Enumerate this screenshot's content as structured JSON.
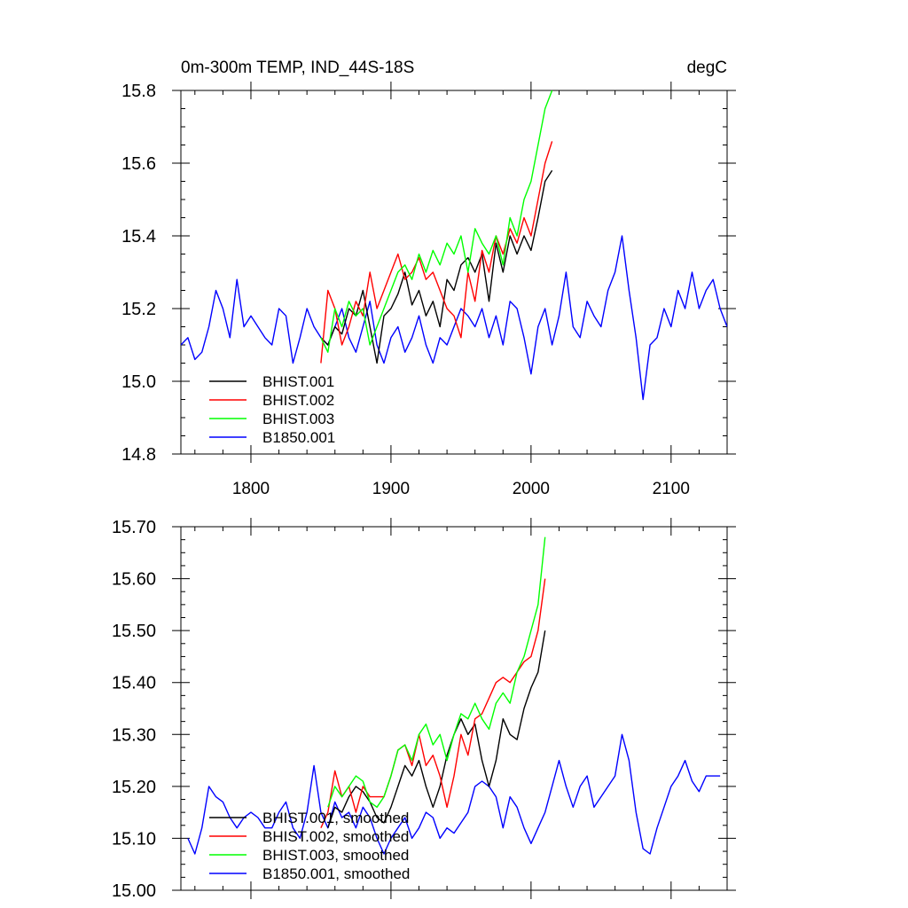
{
  "title_left": "0m-300m TEMP, IND_44S-18S",
  "title_right": "degC",
  "chart_data": [
    {
      "type": "line",
      "title": "0m-300m TEMP, IND_44S-18S",
      "units": "degC",
      "xlim": [
        1750,
        2140
      ],
      "ylim": [
        14.8,
        15.8
      ],
      "xticks": [
        1800,
        1900,
        2000,
        2100
      ],
      "xtick_labels": [
        "1800",
        "1900",
        "2000",
        "2100"
      ],
      "yticks": [
        14.8,
        15.0,
        15.2,
        15.4,
        15.6,
        15.8
      ],
      "ytick_labels": [
        "14.8",
        "15.0",
        "15.2",
        "15.4",
        "15.6",
        "15.8"
      ],
      "legend": [
        "BHIST.001",
        "BHIST.002",
        "BHIST.003",
        "B1850.001"
      ],
      "legend_position": "bottom-left",
      "series": [
        {
          "name": "BHIST.001",
          "color": "#000000",
          "x": [
            1850,
            1855,
            1860,
            1865,
            1870,
            1875,
            1880,
            1885,
            1890,
            1895,
            1900,
            1905,
            1910,
            1915,
            1920,
            1925,
            1930,
            1935,
            1940,
            1945,
            1950,
            1955,
            1960,
            1965,
            1970,
            1975,
            1980,
            1985,
            1990,
            1995,
            2000,
            2005,
            2010,
            2015
          ],
          "values": [
            15.12,
            15.1,
            15.15,
            15.13,
            15.2,
            15.18,
            15.25,
            15.15,
            15.05,
            15.18,
            15.2,
            15.24,
            15.3,
            15.21,
            15.25,
            15.18,
            15.22,
            15.15,
            15.28,
            15.25,
            15.32,
            15.34,
            15.3,
            15.35,
            15.22,
            15.38,
            15.3,
            15.4,
            15.35,
            15.4,
            15.36,
            15.45,
            15.55,
            15.58
          ]
        },
        {
          "name": "BHIST.002",
          "color": "#ff0000",
          "x": [
            1850,
            1855,
            1860,
            1865,
            1870,
            1875,
            1880,
            1885,
            1890,
            1895,
            1900,
            1905,
            1910,
            1915,
            1920,
            1925,
            1930,
            1935,
            1940,
            1945,
            1950,
            1955,
            1960,
            1965,
            1970,
            1975,
            1980,
            1985,
            1990,
            1995,
            2000,
            2005,
            2010,
            2015
          ],
          "values": [
            15.05,
            15.25,
            15.2,
            15.1,
            15.15,
            15.22,
            15.18,
            15.3,
            15.2,
            15.25,
            15.3,
            15.35,
            15.28,
            15.3,
            15.34,
            15.28,
            15.3,
            15.25,
            15.2,
            15.18,
            15.12,
            15.3,
            15.22,
            15.36,
            15.3,
            15.4,
            15.35,
            15.42,
            15.38,
            15.45,
            15.4,
            15.5,
            15.6,
            15.66
          ]
        },
        {
          "name": "BHIST.003",
          "color": "#00ff00",
          "x": [
            1850,
            1855,
            1860,
            1865,
            1870,
            1875,
            1880,
            1885,
            1890,
            1895,
            1900,
            1905,
            1910,
            1915,
            1920,
            1925,
            1930,
            1935,
            1940,
            1945,
            1950,
            1955,
            1960,
            1965,
            1970,
            1975,
            1980,
            1985,
            1990,
            1995,
            2000,
            2005,
            2010,
            2015
          ],
          "values": [
            15.12,
            15.08,
            15.2,
            15.15,
            15.22,
            15.18,
            15.2,
            15.1,
            15.15,
            15.2,
            15.25,
            15.3,
            15.32,
            15.28,
            15.35,
            15.3,
            15.36,
            15.32,
            15.38,
            15.35,
            15.4,
            15.3,
            15.42,
            15.38,
            15.35,
            15.4,
            15.32,
            15.45,
            15.4,
            15.5,
            15.55,
            15.65,
            15.75,
            15.8
          ]
        },
        {
          "name": "B1850.001",
          "color": "#0000ff",
          "x": [
            1750,
            1755,
            1760,
            1765,
            1770,
            1775,
            1780,
            1785,
            1790,
            1795,
            1800,
            1805,
            1810,
            1815,
            1820,
            1825,
            1830,
            1835,
            1840,
            1845,
            1850,
            1855,
            1860,
            1865,
            1870,
            1875,
            1880,
            1885,
            1890,
            1895,
            1900,
            1905,
            1910,
            1915,
            1920,
            1925,
            1930,
            1935,
            1940,
            1945,
            1950,
            1955,
            1960,
            1965,
            1970,
            1975,
            1980,
            1985,
            1990,
            1995,
            2000,
            2005,
            2010,
            2015,
            2020,
            2025,
            2030,
            2035,
            2040,
            2045,
            2050,
            2055,
            2060,
            2065,
            2070,
            2075,
            2080,
            2085,
            2090,
            2095,
            2100,
            2105,
            2110,
            2115,
            2120,
            2125,
            2130,
            2135,
            2140
          ],
          "values": [
            15.1,
            15.12,
            15.06,
            15.08,
            15.15,
            15.25,
            15.2,
            15.12,
            15.28,
            15.15,
            15.18,
            15.15,
            15.12,
            15.1,
            15.2,
            15.18,
            15.05,
            15.12,
            15.2,
            15.15,
            15.12,
            15.1,
            15.15,
            15.2,
            15.12,
            15.08,
            15.15,
            15.22,
            15.1,
            15.05,
            15.12,
            15.15,
            15.08,
            15.12,
            15.18,
            15.1,
            15.05,
            15.12,
            15.1,
            15.15,
            15.2,
            15.18,
            15.15,
            15.2,
            15.12,
            15.18,
            15.1,
            15.22,
            15.2,
            15.12,
            15.02,
            15.15,
            15.2,
            15.1,
            15.18,
            15.3,
            15.15,
            15.12,
            15.22,
            15.18,
            15.15,
            15.25,
            15.3,
            15.4,
            15.25,
            15.12,
            14.95,
            15.1,
            15.12,
            15.2,
            15.15,
            15.25,
            15.2,
            15.3,
            15.2,
            15.25,
            15.28,
            15.2,
            15.15
          ]
        }
      ]
    },
    {
      "type": "line",
      "title": "",
      "xlim": [
        1750,
        2140
      ],
      "ylim": [
        15.0,
        15.7
      ],
      "xticks": [
        1800,
        1900,
        2000,
        2100
      ],
      "xtick_labels": [],
      "yticks": [
        15.0,
        15.1,
        15.2,
        15.3,
        15.4,
        15.5,
        15.6,
        15.7
      ],
      "ytick_labels": [
        "15.00",
        "15.10",
        "15.20",
        "15.30",
        "15.40",
        "15.50",
        "15.60",
        "15.70"
      ],
      "legend": [
        "BHIST.001, smoothed",
        "BHIST.002, smoothed",
        "BHIST.003, smoothed",
        "B1850.001, smoothed"
      ],
      "legend_position": "bottom-left",
      "series": [
        {
          "name": "BHIST.001, smoothed",
          "color": "#000000",
          "x": [
            1855,
            1860,
            1865,
            1870,
            1875,
            1880,
            1885,
            1890,
            1895,
            1900,
            1905,
            1910,
            1915,
            1920,
            1925,
            1930,
            1935,
            1940,
            1945,
            1950,
            1955,
            1960,
            1965,
            1970,
            1975,
            1980,
            1985,
            1990,
            1995,
            2000,
            2005,
            2010
          ],
          "values": [
            15.12,
            15.16,
            15.15,
            15.18,
            15.2,
            15.19,
            15.17,
            15.14,
            15.13,
            15.16,
            15.2,
            15.24,
            15.22,
            15.25,
            15.2,
            15.16,
            15.2,
            15.26,
            15.3,
            15.33,
            15.3,
            15.32,
            15.25,
            15.2,
            15.25,
            15.33,
            15.3,
            15.29,
            15.35,
            15.39,
            15.42,
            15.5
          ]
        },
        {
          "name": "BHIST.002, smoothed",
          "color": "#ff0000",
          "x": [
            1850,
            1855,
            1860,
            1865,
            1870,
            1875,
            1880,
            1885,
            1890,
            1895,
            1900,
            1905,
            1910,
            1915,
            1920,
            1925,
            1930,
            1935,
            1940,
            1945,
            1950,
            1955,
            1960,
            1965,
            1970,
            1975,
            1980,
            1985,
            1990,
            1995,
            2000,
            2005,
            2010
          ],
          "values": [
            15.12,
            15.15,
            15.23,
            15.18,
            15.2,
            15.15,
            15.2,
            15.18,
            15.18,
            15.18,
            15.22,
            15.27,
            15.28,
            15.24,
            15.3,
            15.24,
            15.26,
            15.22,
            15.16,
            15.22,
            15.3,
            15.26,
            15.33,
            15.34,
            15.37,
            15.4,
            15.41,
            15.4,
            15.42,
            15.44,
            15.45,
            15.5,
            15.6
          ]
        },
        {
          "name": "BHIST.003, smoothed",
          "color": "#00ff00",
          "x": [
            1855,
            1860,
            1865,
            1870,
            1875,
            1880,
            1885,
            1890,
            1895,
            1900,
            1905,
            1910,
            1915,
            1920,
            1925,
            1930,
            1935,
            1940,
            1945,
            1950,
            1955,
            1960,
            1965,
            1970,
            1975,
            1980,
            1985,
            1990,
            1995,
            2000,
            2005,
            2010
          ],
          "values": [
            15.16,
            15.2,
            15.18,
            15.2,
            15.22,
            15.21,
            15.17,
            15.16,
            15.18,
            15.22,
            15.27,
            15.28,
            15.25,
            15.3,
            15.32,
            15.28,
            15.3,
            15.25,
            15.3,
            15.34,
            15.33,
            15.36,
            15.33,
            15.31,
            15.36,
            15.38,
            15.36,
            15.42,
            15.45,
            15.5,
            15.55,
            15.68
          ]
        },
        {
          "name": "B1850.001, smoothed",
          "color": "#0000ff",
          "x": [
            1755,
            1760,
            1765,
            1770,
            1775,
            1780,
            1785,
            1790,
            1795,
            1800,
            1805,
            1810,
            1815,
            1820,
            1825,
            1830,
            1835,
            1840,
            1845,
            1850,
            1855,
            1860,
            1865,
            1870,
            1875,
            1880,
            1885,
            1890,
            1895,
            1900,
            1905,
            1910,
            1915,
            1920,
            1925,
            1930,
            1935,
            1940,
            1945,
            1950,
            1955,
            1960,
            1965,
            1970,
            1975,
            1980,
            1985,
            1990,
            1995,
            2000,
            2005,
            2010,
            2015,
            2020,
            2025,
            2030,
            2035,
            2040,
            2045,
            2050,
            2055,
            2060,
            2065,
            2070,
            2075,
            2080,
            2085,
            2090,
            2095,
            2100,
            2105,
            2110,
            2115,
            2120,
            2125,
            2130,
            2135
          ],
          "values": [
            15.1,
            15.07,
            15.12,
            15.2,
            15.18,
            15.17,
            15.14,
            15.12,
            15.14,
            15.15,
            15.14,
            15.12,
            15.12,
            15.15,
            15.17,
            15.12,
            15.1,
            15.15,
            15.24,
            15.15,
            15.12,
            15.17,
            15.14,
            15.15,
            15.12,
            15.16,
            15.14,
            15.1,
            15.07,
            15.1,
            15.12,
            15.14,
            15.1,
            15.12,
            15.15,
            15.14,
            15.1,
            15.12,
            15.11,
            15.13,
            15.15,
            15.2,
            15.21,
            15.2,
            15.18,
            15.12,
            15.18,
            15.16,
            15.12,
            15.09,
            15.12,
            15.15,
            15.2,
            15.25,
            15.2,
            15.16,
            15.2,
            15.22,
            15.16,
            15.18,
            15.2,
            15.22,
            15.3,
            15.25,
            15.15,
            15.08,
            15.07,
            15.12,
            15.16,
            15.2,
            15.22,
            15.25,
            15.21,
            15.19,
            15.22,
            15.22,
            15.22
          ]
        }
      ]
    }
  ]
}
